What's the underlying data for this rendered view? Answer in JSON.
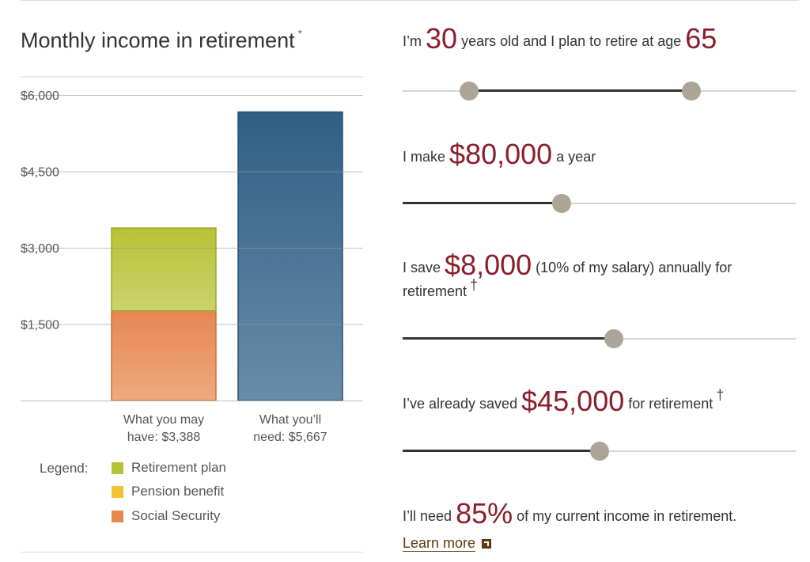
{
  "chart_data": {
    "type": "bar",
    "stacked": true,
    "title": "Monthly income in retirement",
    "title_note": "*",
    "ylim": [
      0,
      6000
    ],
    "y_ticks": [
      {
        "value": 6000,
        "label": "$6,000"
      },
      {
        "value": 4500,
        "label": "$4,500"
      },
      {
        "value": 3000,
        "label": "$3,000"
      },
      {
        "value": 1500,
        "label": "$1,500"
      }
    ],
    "grid": true,
    "categories": [
      {
        "line1": "What you may",
        "line2": "have: $3,388"
      },
      {
        "line1": "What you’ll",
        "line2": "need: $5,667"
      }
    ],
    "series": [
      {
        "name": "Social Security",
        "color": "#e8874f",
        "values": [
          1760,
          0
        ]
      },
      {
        "name": "Pension benefit",
        "color": "#f1c232",
        "values": [
          0,
          0
        ]
      },
      {
        "name": "Retirement plan",
        "color": "#b7c234",
        "values": [
          1628,
          0
        ]
      },
      {
        "name": "",
        "color": "#2f5f86",
        "values": [
          0,
          5667
        ]
      }
    ],
    "legend_label": "Legend:",
    "legend_order": [
      2,
      1,
      0
    ],
    "legend_position": "bottom-left"
  },
  "calculator": {
    "age_text_1": "I’m",
    "current_age": "30",
    "age_text_2": "years old and I plan to retire at age",
    "retire_age": "65",
    "age_slider": {
      "low": 0.17,
      "high": 0.735
    },
    "salary_text_1": "I make",
    "salary": "$80,000",
    "salary_text_2": "a year",
    "salary_slider": 0.405,
    "save_text_1": "I save",
    "annual_savings": "$8,000",
    "save_text_2": "(10% of my salary) annually for retirement",
    "save_note": "†",
    "save_slider": 0.537,
    "saved_text_1": "I’ve already saved",
    "already_saved": "$45,000",
    "saved_text_2": "for retirement",
    "saved_note": "†",
    "saved_slider": 0.5,
    "need_text_1": "I’ll need",
    "need_percent": "85%",
    "need_text_2": "of my current income in retirement.",
    "learn_more": "Learn more"
  }
}
